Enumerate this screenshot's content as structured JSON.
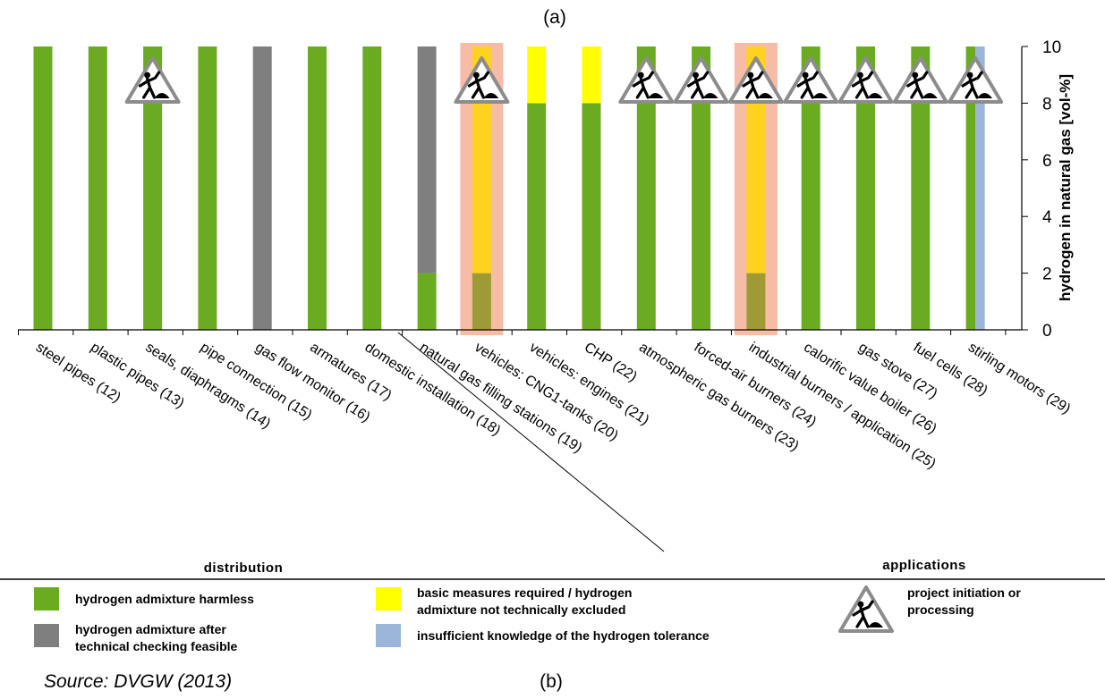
{
  "panel_top_label": "(a)",
  "panel_bottom_label": "(b)",
  "source": "Source: DVGW (2013)",
  "sections": {
    "left": "distribution",
    "right": "applications"
  },
  "colors": {
    "harmless": "#6aab21",
    "checking": "#7f7f7f",
    "basic": "#ffff00",
    "insufficient": "#9ab5d8",
    "highlight": "#f6b096"
  },
  "legend": [
    {
      "key": "harmless",
      "lines": [
        "hydrogen admixture harmless"
      ]
    },
    {
      "key": "checking",
      "lines": [
        "hydrogen admixture after",
        "technical checking feasible"
      ]
    },
    {
      "key": "basic",
      "lines": [
        "basic measures required / hydrogen",
        "admixture not technically excluded"
      ]
    },
    {
      "key": "insufficient",
      "lines": [
        "insufficient knowledge of the hydrogen tolerance"
      ]
    },
    {
      "key": "project",
      "icon": "construction-worker-warning-icon",
      "lines": [
        "project initiation or",
        "processing"
      ]
    }
  ],
  "chart_data": {
    "type": "bar",
    "stacked": true,
    "ylabel": "hydrogen in natural gas [vol-%]",
    "ylim": [
      0,
      10
    ],
    "yticks": [
      0,
      2,
      4,
      6,
      8,
      10
    ],
    "y_axis_side": "right",
    "categories": [
      "steel pipes (12)",
      "plastic pipes (13)",
      "seals, diaphragms (14)",
      "pipe connection (15)",
      "gas flow monitor (16)",
      "armatures (17)",
      "domestic installation (18)",
      "natural gas filling stations (19)",
      "vehicles: CNG1-tanks (20)",
      "vehicles: engines (21)",
      "CHP (22)",
      "atmospheric gas burners (23)",
      "forced-air burners (24)",
      "industrial burners / application (25)",
      "calorific value boiler (26)",
      "gas stove (27)",
      "fuel cells (28)",
      "stirling motors (29)"
    ],
    "series": [
      {
        "name": "hydrogen admixture harmless",
        "key": "harmless",
        "values": [
          10,
          10,
          10,
          10,
          0,
          10,
          10,
          2,
          2,
          8,
          8,
          10,
          10,
          2,
          10,
          10,
          10,
          10
        ]
      },
      {
        "name": "hydrogen admixture after technical checking feasible",
        "key": "checking",
        "values": [
          0,
          0,
          0,
          0,
          10,
          0,
          0,
          8,
          0,
          0,
          0,
          0,
          0,
          0,
          0,
          0,
          0,
          0
        ]
      },
      {
        "name": "basic measures required / hydrogen admixture not technically excluded",
        "key": "basic",
        "values": [
          0,
          0,
          0,
          0,
          0,
          0,
          0,
          0,
          8,
          2,
          2,
          0,
          0,
          8,
          0,
          0,
          0,
          0
        ]
      }
    ],
    "split_bars": [
      {
        "index": 17,
        "left_key": "harmless",
        "right_key": "insufficient",
        "value": 10
      }
    ],
    "highlighted": [
      8,
      13
    ],
    "project_icons": [
      2,
      8,
      11,
      12,
      13,
      14,
      15,
      16,
      17
    ],
    "section_split_after_index": 6
  }
}
